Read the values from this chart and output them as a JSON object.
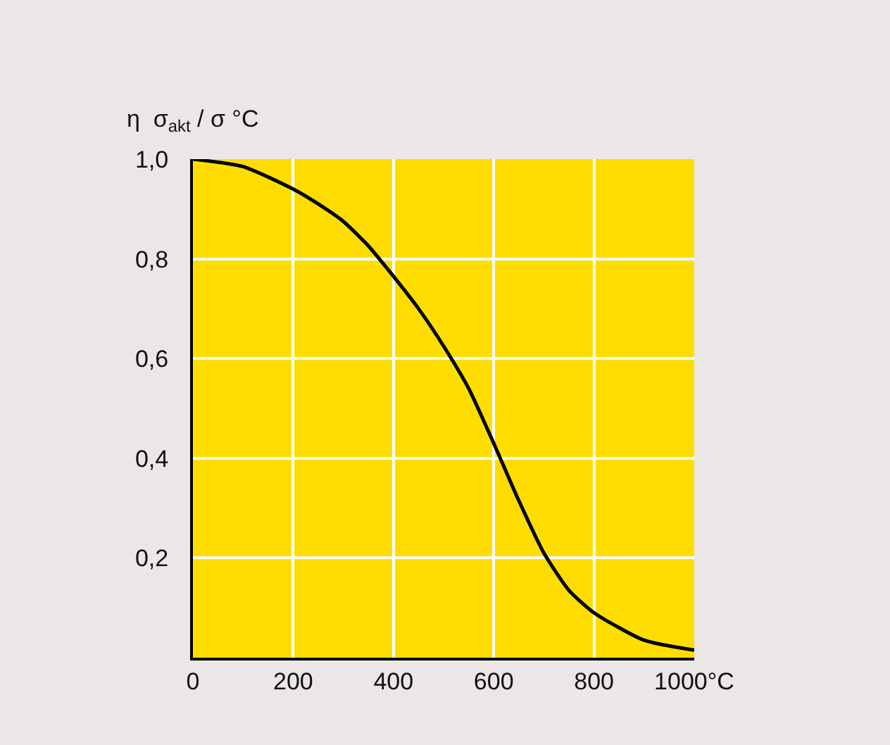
{
  "chart_data": {
    "type": "line",
    "ylabel": "η  σ$_{akt}$ / σ °C",
    "x": [
      0,
      100,
      200,
      250,
      300,
      350,
      400,
      450,
      500,
      550,
      600,
      650,
      700,
      750,
      800,
      900,
      1000
    ],
    "series": [
      {
        "color": "#000000",
        "values": [
          1.0,
          0.985,
          0.94,
          0.91,
          0.875,
          0.826,
          0.765,
          0.7,
          0.625,
          0.54,
          0.43,
          0.315,
          0.21,
          0.135,
          0.09,
          0.035,
          0.015
        ]
      }
    ],
    "xlim": [
      0,
      1000
    ],
    "ylim": [
      0,
      1
    ],
    "xticks": [
      0,
      200,
      400,
      600,
      800,
      {
        "value": 1000,
        "label": "1000°C"
      }
    ],
    "yticks": [
      {
        "value": 0.2,
        "label": "0,2"
      },
      {
        "value": 0.4,
        "label": "0,4"
      },
      {
        "value": 0.6,
        "label": "0,6"
      },
      {
        "value": 0.8,
        "label": "0,8"
      },
      {
        "value": 1.0,
        "label": "1,0"
      }
    ],
    "grid": true,
    "marker": "none",
    "line_style": "solid"
  }
}
